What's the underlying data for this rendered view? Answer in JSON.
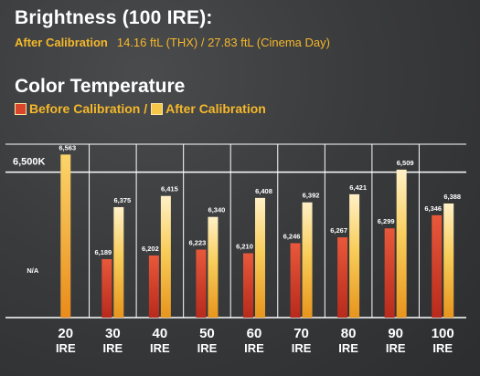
{
  "brightness": {
    "title": "Brightness (100 IRE):",
    "after_label": "After Calibration",
    "after_value": "14.16 ftL (THX) / 27.83 ftL (Cinema Day)"
  },
  "color_temp": {
    "title": "Color Temperature",
    "legend_before": "Before Calibration /",
    "legend_after": "After Calibration"
  },
  "colors": {
    "accent": "#f5b82a",
    "before_bar": "#d9462a",
    "after_bar": "#f5c84a"
  },
  "chart_data": {
    "type": "bar",
    "title": "Color Temperature",
    "categories": [
      "20 IRE",
      "30 IRE",
      "40 IRE",
      "50 IRE",
      "60 IRE",
      "70 IRE",
      "80 IRE",
      "90 IRE",
      "100 IRE"
    ],
    "category_top": [
      "20",
      "30",
      "40",
      "50",
      "60",
      "70",
      "80",
      "90",
      "100"
    ],
    "category_bottom": [
      "IRE",
      "IRE",
      "IRE",
      "IRE",
      "IRE",
      "IRE",
      "IRE",
      "IRE",
      "IRE"
    ],
    "series": [
      {
        "name": "Before Calibration",
        "values": [
          null,
          6189,
          6202,
          6223,
          6210,
          6246,
          6267,
          6299,
          6346
        ],
        "labels": [
          "N/A",
          "6,189",
          "6,202",
          "6,223",
          "6,210",
          "6,246",
          "6,267",
          "6,299",
          "6,346"
        ]
      },
      {
        "name": "After Calibration",
        "values": [
          6563,
          6375,
          6415,
          6340,
          6408,
          6392,
          6421,
          6509,
          6388
        ],
        "labels": [
          "6,563",
          "6,375",
          "6,415",
          "6,340",
          "6,408",
          "6,392",
          "6,421",
          "6,509",
          "6,388"
        ]
      }
    ],
    "reference_line": {
      "value": 6500,
      "label": "6,500K"
    },
    "ylim": [
      5980,
      6600
    ],
    "grid": true
  }
}
